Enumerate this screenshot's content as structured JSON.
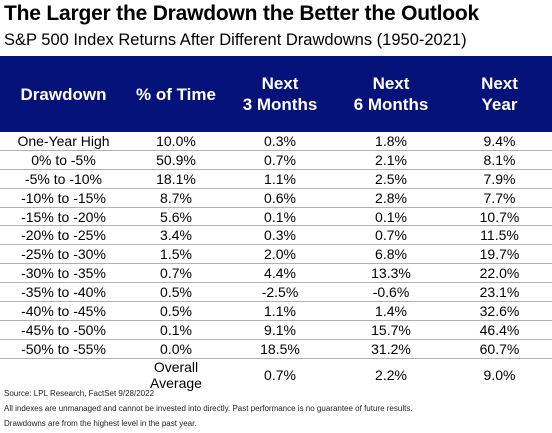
{
  "chart_data": {
    "type": "table",
    "title": "The Larger the Drawdown the Better the Outlook",
    "subtitle": "S&P 500 Index  Returns After Different Drawdowns (1950-2021)",
    "columns": [
      {
        "label": "Drawdown"
      },
      {
        "label": "% of Time"
      },
      {
        "label": "Next 3 Months",
        "line1": "Next",
        "line2": "3 Months"
      },
      {
        "label": "Next 6 Months",
        "line1": "Next",
        "line2": "6 Months"
      },
      {
        "label": "Next Year",
        "line1": "Next",
        "line2": "Year"
      }
    ],
    "rows": [
      [
        "One-Year High",
        "10.0%",
        "0.3%",
        "1.8%",
        "9.4%"
      ],
      [
        "0% to -5%",
        "50.9%",
        "0.7%",
        "2.1%",
        "8.1%"
      ],
      [
        "-5% to -10%",
        "18.1%",
        "1.1%",
        "2.5%",
        "7.9%"
      ],
      [
        "-10% to -15%",
        "8.7%",
        "0.6%",
        "2.8%",
        "7.7%"
      ],
      [
        "-15% to -20%",
        "5.6%",
        "0.1%",
        "0.1%",
        "10.7%"
      ],
      [
        "-20% to -25%",
        "3.4%",
        "0.3%",
        "0.7%",
        "11.5%"
      ],
      [
        "-25% to -30%",
        "1.5%",
        "2.0%",
        "6.8%",
        "19.7%"
      ],
      [
        "-30% to -35%",
        "0.7%",
        "4.4%",
        "13.3%",
        "22.0%"
      ],
      [
        "-35% to -40%",
        "0.5%",
        "-2.5%",
        "-0.6%",
        "23.1%"
      ],
      [
        "-40% to -45%",
        "0.5%",
        "1.1%",
        "1.4%",
        "32.6%"
      ],
      [
        "-45% to -50%",
        "0.1%",
        "9.1%",
        "15.7%",
        "46.4%"
      ],
      [
        "-50% to -55%",
        "0.0%",
        "18.5%",
        "31.2%",
        "60.7%"
      ],
      [
        "",
        "Overall Average",
        "0.7%",
        "2.2%",
        "9.0%"
      ]
    ],
    "header_color": "#04127a"
  },
  "footnotes": [
    "Source: LPL Research, FactSet  9/28/2022",
    "All indexes are unmanaged and cannot be invested into directly. Past performance is no guarantee of future results.",
    "Drawdowns are from the highest level in the past  year."
  ]
}
